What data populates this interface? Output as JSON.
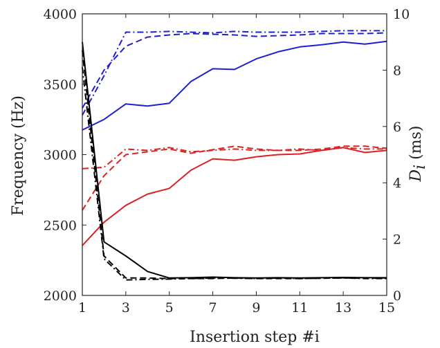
{
  "chart_data": {
    "type": "line",
    "xlabel": "Insertion step #i",
    "ylabel_left": "Frequency (Hz)",
    "ylabel_right_symbol": "D",
    "ylabel_right_subscript": "i",
    "ylabel_right_unit": "(ms)",
    "x_ticks": [
      "1",
      "3",
      "5",
      "7",
      "9",
      "11",
      "13",
      "15"
    ],
    "y_left_ticks": [
      "2000",
      "2500",
      "3000",
      "3500",
      "4000"
    ],
    "y_right_ticks": [
      "0",
      "2",
      "4",
      "6",
      "8",
      "10"
    ],
    "xlim": [
      1,
      15
    ],
    "ylim_left": [
      2000,
      4000
    ],
    "ylim_right": [
      0,
      10
    ],
    "grid": false,
    "colors": {
      "blue": "#1f1fcf",
      "red": "#dd2020",
      "black": "#000000"
    },
    "series": [
      {
        "axis": "left",
        "color": "blue",
        "style": "solid",
        "x": [
          1,
          2,
          3,
          4,
          5,
          6,
          7,
          8,
          9,
          10,
          11,
          12,
          13,
          14,
          15
        ],
        "y": [
          3175,
          3250,
          3360,
          3345,
          3365,
          3520,
          3610,
          3605,
          3680,
          3730,
          3765,
          3780,
          3800,
          3785,
          3805
        ]
      },
      {
        "axis": "left",
        "color": "blue",
        "style": "dashed",
        "x": [
          1,
          2,
          3,
          4,
          5,
          6,
          7,
          8,
          9,
          10,
          11,
          12,
          13,
          14,
          15
        ],
        "y": [
          3330,
          3600,
          3770,
          3835,
          3850,
          3860,
          3855,
          3850,
          3840,
          3845,
          3850,
          3860,
          3860,
          3860,
          3865
        ]
      },
      {
        "axis": "left",
        "color": "blue",
        "style": "dashdot",
        "x": [
          1,
          2,
          3,
          4,
          5,
          6,
          7,
          8,
          9,
          10,
          11,
          12,
          13,
          14,
          15
        ],
        "y": [
          3280,
          3560,
          3870,
          3870,
          3875,
          3870,
          3865,
          3875,
          3870,
          3870,
          3870,
          3875,
          3880,
          3880,
          3880
        ]
      },
      {
        "axis": "left",
        "color": "red",
        "style": "solid",
        "x": [
          1,
          2,
          3,
          4,
          5,
          6,
          7,
          8,
          9,
          10,
          11,
          12,
          13,
          14,
          15
        ],
        "y": [
          2355,
          2520,
          2640,
          2720,
          2760,
          2890,
          2970,
          2960,
          2985,
          3000,
          3005,
          3030,
          3050,
          3015,
          3030
        ]
      },
      {
        "axis": "left",
        "color": "red",
        "style": "dashed",
        "x": [
          1,
          2,
          3,
          4,
          5,
          6,
          7,
          8,
          9,
          10,
          11,
          12,
          13,
          14,
          15
        ],
        "y": [
          2605,
          2850,
          3000,
          3020,
          3040,
          3010,
          3035,
          3060,
          3040,
          3030,
          3030,
          3040,
          3060,
          3060,
          3045
        ]
      },
      {
        "axis": "left",
        "color": "red",
        "style": "dashdot",
        "x": [
          1,
          2,
          3,
          4,
          5,
          6,
          7,
          8,
          9,
          10,
          11,
          12,
          13,
          14,
          15
        ],
        "y": [
          2900,
          2910,
          3040,
          3030,
          3050,
          3020,
          3030,
          3040,
          3030,
          3030,
          3040,
          3030,
          3050,
          3040,
          3040
        ]
      },
      {
        "axis": "right",
        "color": "black",
        "style": "solid",
        "x": [
          1,
          2,
          3,
          4,
          5,
          6,
          7,
          8,
          9,
          10,
          11,
          12,
          13,
          14,
          15
        ],
        "y": [
          9.0,
          1.9,
          1.4,
          0.85,
          0.62,
          0.63,
          0.65,
          0.63,
          0.62,
          0.63,
          0.62,
          0.63,
          0.64,
          0.63,
          0.63
        ]
      },
      {
        "axis": "right",
        "color": "black",
        "style": "dashed",
        "x": [
          1,
          2,
          3,
          4,
          5,
          6,
          7,
          8,
          9,
          10,
          11,
          12,
          13,
          14,
          15
        ],
        "y": [
          8.7,
          1.4,
          0.62,
          0.62,
          0.6,
          0.6,
          0.6,
          0.62,
          0.6,
          0.6,
          0.6,
          0.61,
          0.62,
          0.61,
          0.62
        ]
      },
      {
        "axis": "right",
        "color": "black",
        "style": "dashdot",
        "x": [
          1,
          2,
          3,
          4,
          5,
          6,
          7,
          8,
          9,
          10,
          11,
          12,
          13,
          14,
          15
        ],
        "y": [
          8.1,
          1.3,
          0.55,
          0.57,
          0.58,
          0.6,
          0.62,
          0.61,
          0.6,
          0.62,
          0.6,
          0.61,
          0.62,
          0.6,
          0.6
        ]
      }
    ]
  }
}
